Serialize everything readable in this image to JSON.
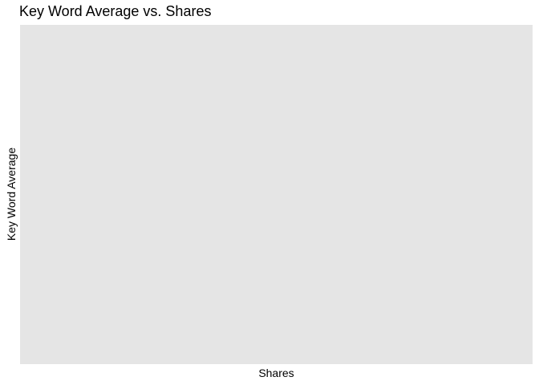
{
  "chart_data": {
    "type": "scatter",
    "title": "Key Word Average vs. Shares",
    "xlabel": "Shares",
    "ylabel": "Key Word Average",
    "series": [],
    "grid": false,
    "panel_color": "#e5e5e5"
  }
}
